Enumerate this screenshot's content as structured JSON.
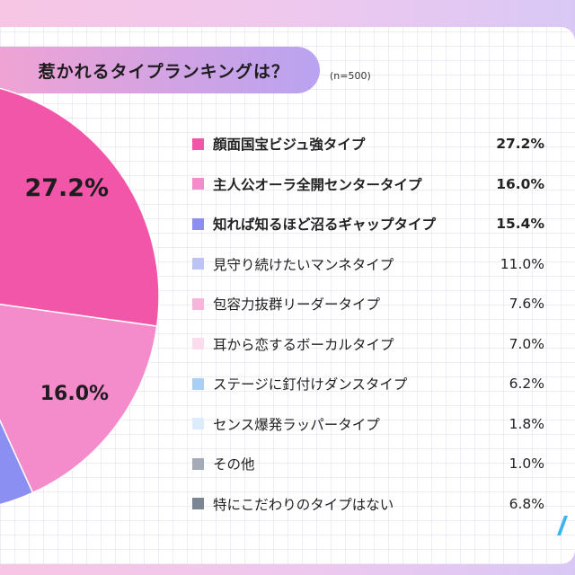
{
  "title": "惹かれるタイプランキングは？",
  "sample_size": "(n=500)",
  "colors": {
    "background_gradient": [
      "#f7c6e4",
      "#d9c8f5"
    ],
    "title_pill": [
      "#f4a3d2",
      "#b9a3f0"
    ]
  },
  "chart_data": {
    "type": "pie",
    "title": "惹かれるタイプランキングは？",
    "note": "(n=500)",
    "legend_placement": "right",
    "slices": [
      {
        "label": "顔面国宝ビジュ強タイプ",
        "value": 27.2,
        "display": "27.2%",
        "color": "#f256a8",
        "bold": true,
        "show_label": true,
        "label_text": "27.2%"
      },
      {
        "label": "主人公オーラ全開センタータイプ",
        "value": 16.0,
        "display": "16.0%",
        "color": "#f48ccb",
        "bold": true,
        "show_label": true,
        "label_text": "16.0%"
      },
      {
        "label": "知れば知るほど沼るギャップタイプ",
        "value": 15.4,
        "display": "15.4%",
        "color": "#8c8ff2",
        "bold": true,
        "show_label": false,
        "label_text": "15.4%"
      },
      {
        "label": "見守り続けたいマンネタイプ",
        "value": 11.0,
        "display": "11.0%",
        "color": "#bcc4f5",
        "bold": false,
        "show_label": false,
        "label_text": "11.0%"
      },
      {
        "label": "包容力抜群リーダータイプ",
        "value": 7.6,
        "display": "7.6%",
        "color": "#f6b5d9",
        "bold": false,
        "show_label": false,
        "label_text": "7.6%"
      },
      {
        "label": "耳から恋するボーカルタイプ",
        "value": 7.0,
        "display": "7.0%",
        "color": "#fbdcee",
        "bold": false,
        "show_label": false,
        "label_text": "7.0%"
      },
      {
        "label": "ステージに釘付けダンスタイプ",
        "value": 6.2,
        "display": "6.2%",
        "color": "#a9cff5",
        "bold": false,
        "show_label": false,
        "label_text": "6.2%"
      },
      {
        "label": "センス爆発ラッパータイプ",
        "value": 1.8,
        "display": "1.8%",
        "color": "#dcecfb",
        "bold": false,
        "show_label": false,
        "label_text": "1.8%"
      },
      {
        "label": "その他",
        "value": 1.0,
        "display": "1.0%",
        "color": "#a5abb6",
        "bold": false,
        "show_label": false,
        "label_text": "1.0%"
      },
      {
        "label": "特にこだわりのタイプはない",
        "value": 6.8,
        "display": "6.8%",
        "color": "#7b8594",
        "bold": false,
        "show_label": false,
        "label_text": "6.8%"
      }
    ]
  }
}
